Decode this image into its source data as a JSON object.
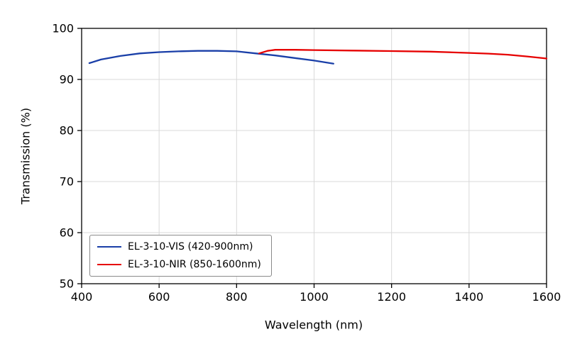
{
  "figure": {
    "background": "#ffffff",
    "axis_color": "#000000",
    "grid_color": "#d9d9d9"
  },
  "chart_data": {
    "type": "line",
    "title": "",
    "xlabel": "Wavelength (nm)",
    "ylabel": "Transmission (%)",
    "xlim": [
      400,
      1600
    ],
    "ylim": [
      50,
      100
    ],
    "xticks": [
      400,
      600,
      800,
      1000,
      1200,
      1400,
      1600
    ],
    "yticks": [
      50,
      60,
      70,
      80,
      90,
      100
    ],
    "grid": true,
    "legend_position": "lower-left",
    "series": [
      {
        "name": "EL-3-10-VIS (420-900nm)",
        "color": "#1a3fa8",
        "x": [
          420,
          450,
          500,
          550,
          600,
          650,
          700,
          750,
          800,
          850,
          900,
          950,
          1000,
          1050
        ],
        "y": [
          93.2,
          93.9,
          94.6,
          95.1,
          95.35,
          95.5,
          95.6,
          95.6,
          95.5,
          95.1,
          94.7,
          94.2,
          93.7,
          93.1
        ]
      },
      {
        "name": "EL-3-10-NIR (850-1600nm)",
        "color": "#e60000",
        "x": [
          858,
          880,
          900,
          950,
          1000,
          1100,
          1200,
          1300,
          1400,
          1450,
          1500,
          1550,
          1600
        ],
        "y": [
          95.1,
          95.6,
          95.8,
          95.8,
          95.75,
          95.65,
          95.55,
          95.45,
          95.2,
          95.05,
          94.85,
          94.5,
          94.1
        ]
      }
    ]
  }
}
